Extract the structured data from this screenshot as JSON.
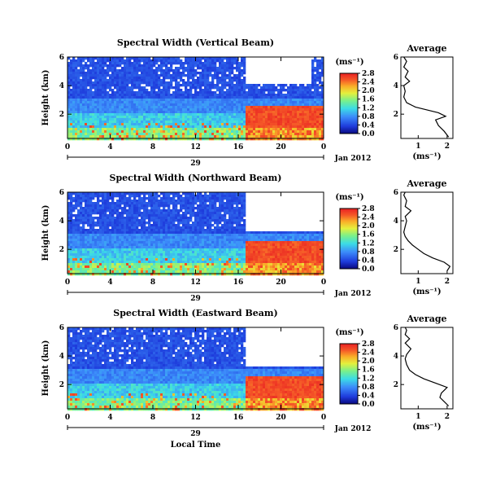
{
  "chart_data": [
    {
      "type": "heatmap",
      "title": "Spectral Width (Vertical Beam)",
      "ylabel": "Height (km)",
      "xlabel": "",
      "x_ticks": [
        "0",
        "4",
        "8",
        "12",
        "16",
        "20",
        "0"
      ],
      "day_label": "29",
      "date_label": "Jan 2012",
      "y_ticks": [
        "2",
        "4",
        "6"
      ],
      "colorbar": {
        "unit": "(ms⁻¹)",
        "ticks": [
          "0.0",
          "0.4",
          "0.8",
          "1.2",
          "1.6",
          "2.0",
          "2.4",
          "2.8"
        ],
        "range": [
          0,
          2.8
        ]
      },
      "average": {
        "title": "Average",
        "xlabel": "(ms⁻¹)",
        "x_ticks": [
          "1",
          "2"
        ],
        "xlim": [
          0.4,
          2.2
        ],
        "y_ticks": [
          "2",
          "4",
          "6"
        ],
        "ylim": [
          0.3,
          6
        ],
        "profile": [
          [
            2.05,
            0.4
          ],
          [
            1.9,
            0.8
          ],
          [
            1.7,
            1.2
          ],
          [
            1.6,
            1.6
          ],
          [
            1.95,
            1.85
          ],
          [
            1.7,
            2.1
          ],
          [
            1.3,
            2.3
          ],
          [
            0.9,
            2.5
          ],
          [
            0.6,
            2.8
          ],
          [
            0.5,
            3.2
          ],
          [
            0.55,
            3.6
          ],
          [
            0.5,
            4.0
          ],
          [
            0.7,
            4.3
          ],
          [
            0.55,
            4.6
          ],
          [
            0.65,
            5.0
          ],
          [
            0.5,
            5.3
          ],
          [
            0.6,
            5.7
          ],
          [
            0.5,
            6.0
          ]
        ]
      },
      "hidden_band": {
        "x_start": 16.6,
        "x_end": 22.7,
        "y_min": 4.2
      }
    },
    {
      "type": "heatmap",
      "title": "Spectral Width (Northward Beam)",
      "ylabel": "Height (km)",
      "xlabel": "",
      "x_ticks": [
        "0",
        "4",
        "8",
        "12",
        "16",
        "20",
        "0"
      ],
      "day_label": "29",
      "date_label": "Jan 2012",
      "y_ticks": [
        "2",
        "4",
        "6"
      ],
      "colorbar": {
        "unit": "(ms⁻¹)",
        "ticks": [
          "0.0",
          "0.4",
          "0.8",
          "1.2",
          "1.6",
          "2.0",
          "2.4",
          "2.8"
        ],
        "range": [
          0,
          2.8
        ]
      },
      "average": {
        "title": "Average",
        "xlabel": "(ms⁻¹)",
        "x_ticks": [
          "1",
          "2"
        ],
        "xlim": [
          0.4,
          2.2
        ],
        "y_ticks": [
          "2",
          "4",
          "6"
        ],
        "ylim": [
          0.3,
          6
        ],
        "profile": [
          [
            2.0,
            0.5
          ],
          [
            2.1,
            0.8
          ],
          [
            1.9,
            1.1
          ],
          [
            1.5,
            1.4
          ],
          [
            1.2,
            1.7
          ],
          [
            1.0,
            2.0
          ],
          [
            0.8,
            2.3
          ],
          [
            0.65,
            2.6
          ],
          [
            0.55,
            2.9
          ],
          [
            0.5,
            3.2
          ],
          [
            0.55,
            3.6
          ],
          [
            0.6,
            4.0
          ],
          [
            0.55,
            4.3
          ],
          [
            0.75,
            4.7
          ],
          [
            0.55,
            5.0
          ],
          [
            0.6,
            5.4
          ],
          [
            0.5,
            5.8
          ],
          [
            0.55,
            6.0
          ]
        ]
      },
      "hidden_band": {
        "x_start": 16.6,
        "x_end": 23.9,
        "y_min": 3.3
      }
    },
    {
      "type": "heatmap",
      "title": "Spectral Width (Eastward Beam)",
      "ylabel": "Height (km)",
      "xlabel": "Local Time",
      "x_ticks": [
        "0",
        "4",
        "8",
        "12",
        "16",
        "20",
        "0"
      ],
      "day_label": "29",
      "date_label": "Jan 2012",
      "y_ticks": [
        "2",
        "4",
        "6"
      ],
      "colorbar": {
        "unit": "(ms⁻¹)",
        "ticks": [
          "0.0",
          "0.4",
          "0.8",
          "1.2",
          "1.6",
          "2.0",
          "2.4",
          "2.8"
        ],
        "range": [
          0,
          2.8
        ]
      },
      "average": {
        "title": "Average",
        "xlabel": "(ms⁻¹)",
        "x_ticks": [
          "1",
          "2"
        ],
        "xlim": [
          0.4,
          2.2
        ],
        "y_ticks": [
          "2",
          "4",
          "6"
        ],
        "ylim": [
          0.3,
          6
        ],
        "profile": [
          [
            2.05,
            0.5
          ],
          [
            1.9,
            0.8
          ],
          [
            1.75,
            1.1
          ],
          [
            1.8,
            1.4
          ],
          [
            2.0,
            1.8
          ],
          [
            1.6,
            2.1
          ],
          [
            1.2,
            2.4
          ],
          [
            0.9,
            2.7
          ],
          [
            0.7,
            3.0
          ],
          [
            0.6,
            3.4
          ],
          [
            0.55,
            3.8
          ],
          [
            0.6,
            4.1
          ],
          [
            0.75,
            4.5
          ],
          [
            0.55,
            4.9
          ],
          [
            0.7,
            5.2
          ],
          [
            0.55,
            5.5
          ],
          [
            0.6,
            5.8
          ],
          [
            0.55,
            6.0
          ]
        ]
      },
      "hidden_band": {
        "x_start": 16.6,
        "x_end": 23.9,
        "y_min": 3.3
      }
    }
  ]
}
